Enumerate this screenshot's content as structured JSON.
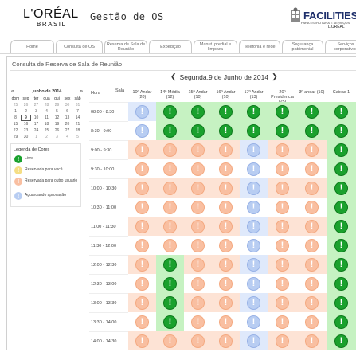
{
  "brand": {
    "name": "L'ORÉAL",
    "sub": "BRASIL"
  },
  "app_title": "Gestão de OS",
  "facilities": {
    "title": "FACILITIES",
    "subtitle": "PARA ESTRUTURA E SERVIÇOS",
    "brand": "L'ORÉAL"
  },
  "nav": [
    {
      "label": "Home",
      "active": false
    },
    {
      "label": "Consulta de OS",
      "active": false
    },
    {
      "label": "Reserva de Sala de Reunião",
      "active": true
    },
    {
      "label": "Expedição",
      "active": false
    },
    {
      "label": "Manut. predial e limpeza",
      "active": false
    },
    {
      "label": "Telefonia e rede",
      "active": false
    },
    {
      "label": "Segurança patrimonial",
      "active": false
    },
    {
      "label": "Serviços corporativos",
      "active": false
    }
  ],
  "section_title": "Consulta de Reserva de Sala de Reunião",
  "date_label": "Segunda,9 de Junho de 2014",
  "calendar": {
    "title": "junho de 2014",
    "prev": "«",
    "next": "»",
    "weekdays": [
      "dom",
      "seg",
      "ter",
      "qua",
      "qui",
      "sex",
      "sáb"
    ],
    "weeks": [
      [
        "25",
        "26",
        "27",
        "28",
        "29",
        "30",
        "31"
      ],
      [
        "1",
        "2",
        "3",
        "4",
        "5",
        "6",
        "7"
      ],
      [
        "8",
        "9",
        "10",
        "11",
        "12",
        "13",
        "14"
      ],
      [
        "15",
        "16",
        "17",
        "18",
        "19",
        "20",
        "21"
      ],
      [
        "22",
        "23",
        "24",
        "25",
        "26",
        "27",
        "28"
      ],
      [
        "29",
        "30",
        "1",
        "2",
        "3",
        "4",
        "5"
      ]
    ],
    "selected": "9"
  },
  "legend": {
    "title": "Legenda de Cores",
    "items": [
      {
        "label": "Livre",
        "color": "#1aa12d"
      },
      {
        "label": "Reservada para você",
        "color": "#f5de84"
      },
      {
        "label": "Reservada para outro usuário",
        "color": "#f9bfa1"
      },
      {
        "label": "Aguardando aprovação",
        "color": "#b8cdf2"
      }
    ]
  },
  "grid": {
    "hour_label": "Hora",
    "room_label": "Sala",
    "rooms": [
      "10º Andar (20)",
      "14º Média (12)",
      "15º Andar (10)",
      "16º Andar (10)",
      "17º Andar (13)",
      "20º Presidencia (25)",
      "3º andar (10)",
      "Caixas 1"
    ],
    "times": [
      "08:00 - 8:30",
      "8:30 - 9:00",
      "9:00 - 9:30",
      "9:30 - 10:00",
      "10:00 - 10:30",
      "10:30 - 11:00",
      "11:00 - 11:30",
      "11:30 - 12:00",
      "12:00 - 12:30",
      "12:30 - 13:00",
      "13:00 - 13:30",
      "13:30 - 14:00",
      "14:00 - 14:30"
    ],
    "status_rows": [
      [
        "b",
        "g",
        "g",
        "g",
        "g",
        "g",
        "g",
        "g"
      ],
      [
        "b",
        "g",
        "g",
        "g",
        "g",
        "g",
        "g",
        "g"
      ],
      [
        "o",
        "o",
        "o",
        "o",
        "b",
        "o",
        "o",
        "g"
      ],
      [
        "o",
        "o",
        "o",
        "o",
        "b",
        "o",
        "o",
        "g"
      ],
      [
        "o",
        "o",
        "o",
        "o",
        "b",
        "o",
        "o",
        "g"
      ],
      [
        "o",
        "o",
        "o",
        "o",
        "b",
        "o",
        "o",
        "g"
      ],
      [
        "o",
        "o",
        "o",
        "o",
        "b",
        "o",
        "o",
        "g"
      ],
      [
        "o",
        "o",
        "o",
        "o",
        "b",
        "o",
        "o",
        "g"
      ],
      [
        "o",
        "g",
        "o",
        "o",
        "b",
        "o",
        "o",
        "g"
      ],
      [
        "o",
        "g",
        "o",
        "o",
        "b",
        "o",
        "o",
        "g"
      ],
      [
        "o",
        "g",
        "o",
        "o",
        "b",
        "o",
        "o",
        "g"
      ],
      [
        "o",
        "g",
        "o",
        "o",
        "b",
        "o",
        "o",
        "g"
      ],
      [
        "o",
        "o",
        "o",
        "o",
        "b",
        "o",
        "o",
        "g"
      ]
    ]
  }
}
